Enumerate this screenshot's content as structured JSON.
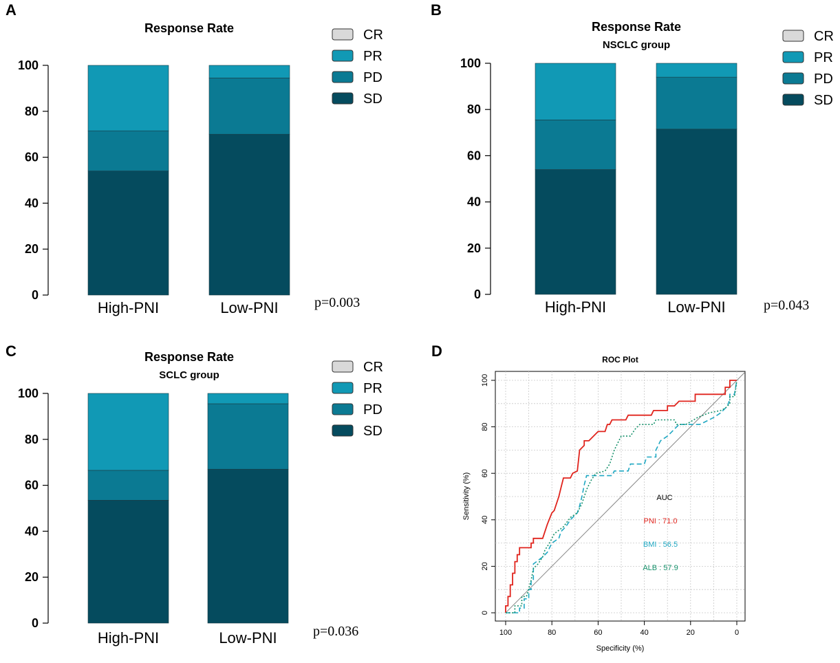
{
  "colors": {
    "CR": "#d9d9d9",
    "PR": "#1199b5",
    "PD": "#0b7a93",
    "SD": "#054b5e"
  },
  "chart_data": [
    {
      "type": "bar",
      "panel": "A",
      "title": "Response Rate",
      "subtitle": "",
      "categories": [
        "High-PNI",
        "Low-PNI"
      ],
      "series": [
        {
          "name": "SD",
          "values": [
            54,
            70
          ]
        },
        {
          "name": "PD",
          "values": [
            17.5,
            24.5
          ]
        },
        {
          "name": "PR",
          "values": [
            28.5,
            5.5
          ]
        },
        {
          "name": "CR",
          "values": [
            0,
            0
          ]
        }
      ],
      "legend": [
        "CR",
        "PR",
        "PD",
        "SD"
      ],
      "ylim": [
        0,
        100
      ],
      "yticks": [
        0,
        20,
        40,
        60,
        80,
        100
      ],
      "annotation": "p=0.003"
    },
    {
      "type": "bar",
      "panel": "B",
      "title": "Response Rate",
      "subtitle": "NSCLC group",
      "categories": [
        "High-PNI",
        "Low-PNI"
      ],
      "series": [
        {
          "name": "SD",
          "values": [
            54,
            71.5
          ]
        },
        {
          "name": "PD",
          "values": [
            21.5,
            22.5
          ]
        },
        {
          "name": "PR",
          "values": [
            24.5,
            6
          ]
        },
        {
          "name": "CR",
          "values": [
            0,
            0
          ]
        }
      ],
      "legend": [
        "CR",
        "PR",
        "PD",
        "SD"
      ],
      "ylim": [
        0,
        100
      ],
      "yticks": [
        0,
        20,
        40,
        60,
        80,
        100
      ],
      "annotation": "p=0.043"
    },
    {
      "type": "bar",
      "panel": "C",
      "title": "Response Rate",
      "subtitle": "SCLC group",
      "categories": [
        "High-PNI",
        "Low-PNI"
      ],
      "series": [
        {
          "name": "SD",
          "values": [
            53.5,
            67
          ]
        },
        {
          "name": "PD",
          "values": [
            13,
            28.5
          ]
        },
        {
          "name": "PR",
          "values": [
            33.5,
            4.5
          ]
        },
        {
          "name": "CR",
          "values": [
            0,
            0
          ]
        }
      ],
      "legend": [
        "CR",
        "PR",
        "PD",
        "SD"
      ],
      "ylim": [
        0,
        100
      ],
      "yticks": [
        0,
        20,
        40,
        60,
        80,
        100
      ],
      "annotation": "p=0.036"
    },
    {
      "type": "line",
      "panel": "D",
      "title": "ROC Plot",
      "xlabel": "Specificity (%)",
      "ylabel": "Sensitivity (%)",
      "xlim": [
        100,
        0
      ],
      "ylim": [
        0,
        100
      ],
      "xticks": [
        100,
        80,
        60,
        40,
        20,
        0
      ],
      "yticks": [
        0,
        20,
        40,
        60,
        80,
        100
      ],
      "grid": true,
      "auc_header": "AUC",
      "series": [
        {
          "name": "PNI",
          "label": "PNI : 71.0",
          "color": "#e0231c",
          "dash": "solid",
          "points": [
            [
              100,
              0
            ],
            [
              100,
              3
            ],
            [
              99,
              3
            ],
            [
              99,
              7
            ],
            [
              98,
              7
            ],
            [
              98,
              12
            ],
            [
              97,
              12
            ],
            [
              97,
              17
            ],
            [
              96,
              17
            ],
            [
              96,
              22
            ],
            [
              95,
              22
            ],
            [
              95,
              25
            ],
            [
              94,
              25
            ],
            [
              94,
              28
            ],
            [
              89,
              28
            ],
            [
              89,
              30
            ],
            [
              88,
              30
            ],
            [
              88,
              32
            ],
            [
              84,
              32
            ],
            [
              82,
              38
            ],
            [
              80,
              43
            ],
            [
              79,
              44
            ],
            [
              77,
              50
            ],
            [
              76,
              54
            ],
            [
              75,
              58
            ],
            [
              72,
              58
            ],
            [
              71,
              60
            ],
            [
              69,
              61
            ],
            [
              68,
              70
            ],
            [
              66,
              72
            ],
            [
              66,
              74
            ],
            [
              64,
              74
            ],
            [
              62,
              76
            ],
            [
              60,
              78
            ],
            [
              57,
              78
            ],
            [
              56,
              81
            ],
            [
              55,
              81
            ],
            [
              54,
              83
            ],
            [
              48,
              83
            ],
            [
              47,
              85
            ],
            [
              37,
              85
            ],
            [
              36,
              87
            ],
            [
              30,
              87
            ],
            [
              30,
              89
            ],
            [
              27,
              89
            ],
            [
              25,
              91
            ],
            [
              18,
              91
            ],
            [
              18,
              94
            ],
            [
              5,
              94
            ],
            [
              5,
              97
            ],
            [
              3,
              97
            ],
            [
              3,
              100
            ],
            [
              0,
              100
            ]
          ]
        },
        {
          "name": "BMI",
          "label": "BMI : 56.5",
          "color": "#1ea7c2",
          "dash": "dashed",
          "points": [
            [
              100,
              0
            ],
            [
              94,
              0
            ],
            [
              94,
              2
            ],
            [
              92,
              2
            ],
            [
              92,
              6
            ],
            [
              90,
              6
            ],
            [
              90,
              10
            ],
            [
              89,
              10
            ],
            [
              89,
              14
            ],
            [
              88,
              14
            ],
            [
              88,
              21
            ],
            [
              84,
              24
            ],
            [
              82,
              26
            ],
            [
              80,
              30
            ],
            [
              77,
              32
            ],
            [
              76,
              35
            ],
            [
              74,
              37
            ],
            [
              72,
              40
            ],
            [
              69,
              43
            ],
            [
              68,
              46
            ],
            [
              67,
              50
            ],
            [
              66,
              55
            ],
            [
              65,
              59
            ],
            [
              54,
              59
            ],
            [
              53,
              61
            ],
            [
              47,
              61
            ],
            [
              46,
              64
            ],
            [
              40,
              64
            ],
            [
              39,
              67
            ],
            [
              35,
              67
            ],
            [
              35,
              70
            ],
            [
              33,
              74
            ],
            [
              30,
              76
            ],
            [
              28,
              78
            ],
            [
              25,
              81
            ],
            [
              16,
              81
            ],
            [
              10,
              84
            ],
            [
              7,
              86
            ],
            [
              4,
              89
            ],
            [
              3,
              92
            ],
            [
              3,
              94
            ],
            [
              1,
              94
            ],
            [
              0,
              100
            ]
          ]
        },
        {
          "name": "ALB",
          "label": "ALB : 57.9",
          "color": "#15906a",
          "dash": "dotted",
          "points": [
            [
              100,
              0
            ],
            [
              96,
              0
            ],
            [
              96,
              3
            ],
            [
              93,
              3
            ],
            [
              93,
              7
            ],
            [
              91,
              7
            ],
            [
              89,
              14
            ],
            [
              88,
              19
            ],
            [
              86,
              21
            ],
            [
              84,
              24
            ],
            [
              83,
              27
            ],
            [
              81,
              30
            ],
            [
              79,
              34
            ],
            [
              75,
              37
            ],
            [
              72,
              41
            ],
            [
              69,
              43
            ],
            [
              67,
              47
            ],
            [
              65,
              53
            ],
            [
              63,
              57
            ],
            [
              61,
              60
            ],
            [
              57,
              61
            ],
            [
              55,
              64
            ],
            [
              53,
              70
            ],
            [
              51,
              74
            ],
            [
              50,
              76
            ],
            [
              46,
              76
            ],
            [
              44,
              79
            ],
            [
              42,
              81
            ],
            [
              36,
              81
            ],
            [
              35,
              83
            ],
            [
              27,
              83
            ],
            [
              26,
              81
            ],
            [
              22,
              81
            ],
            [
              17,
              84
            ],
            [
              12,
              86
            ],
            [
              7,
              87
            ],
            [
              5,
              88
            ],
            [
              3,
              90
            ],
            [
              3,
              93
            ],
            [
              1,
              93
            ],
            [
              0,
              100
            ]
          ]
        }
      ]
    }
  ]
}
